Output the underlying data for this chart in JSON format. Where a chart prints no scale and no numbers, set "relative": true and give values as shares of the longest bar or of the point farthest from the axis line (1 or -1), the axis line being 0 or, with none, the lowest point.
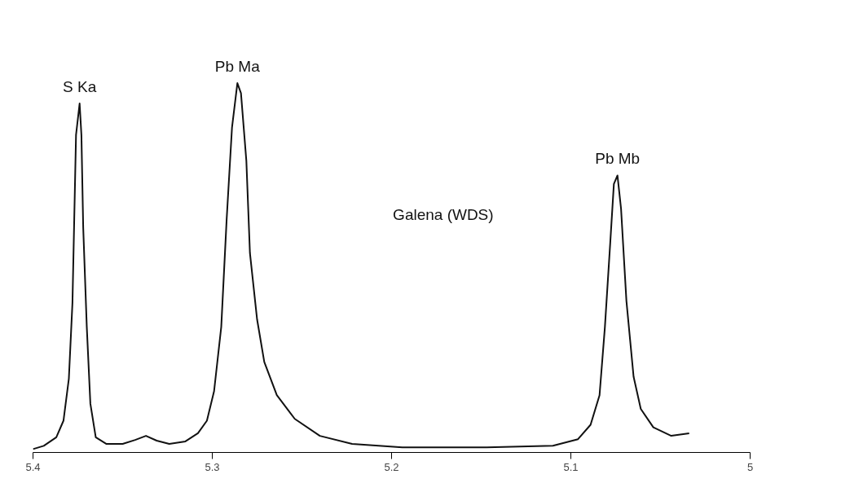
{
  "chart_data": {
    "type": "line",
    "relative": true,
    "x": [
      5.4,
      5.394,
      5.387,
      5.383,
      5.38,
      5.378,
      5.377,
      5.376,
      5.374,
      5.373,
      5.372,
      5.37,
      5.368,
      5.365,
      5.359,
      5.35,
      5.343,
      5.337,
      5.331,
      5.324,
      5.315,
      5.308,
      5.303,
      5.299,
      5.295,
      5.292,
      5.289,
      5.286,
      5.284,
      5.281,
      5.279,
      5.275,
      5.271,
      5.264,
      5.254,
      5.24,
      5.222,
      5.194,
      5.147,
      5.11,
      5.096,
      5.089,
      5.084,
      5.081,
      5.078,
      5.076,
      5.074,
      5.072,
      5.069,
      5.065,
      5.061,
      5.054,
      5.044,
      5.034
    ],
    "series": [
      {
        "color": "#111111",
        "values": [
          0.009,
          0.018,
          0.041,
          0.086,
          0.2,
          0.405,
          0.632,
          0.86,
          0.945,
          0.86,
          0.61,
          0.34,
          0.132,
          0.041,
          0.023,
          0.023,
          0.034,
          0.045,
          0.032,
          0.023,
          0.03,
          0.052,
          0.086,
          0.166,
          0.34,
          0.63,
          0.88,
          1.0,
          0.973,
          0.79,
          0.54,
          0.36,
          0.245,
          0.155,
          0.091,
          0.045,
          0.023,
          0.014,
          0.014,
          0.018,
          0.036,
          0.075,
          0.155,
          0.34,
          0.57,
          0.727,
          0.75,
          0.66,
          0.41,
          0.205,
          0.118,
          0.068,
          0.045,
          0.052
        ]
      }
    ],
    "xlim": [
      5.4,
      5.0
    ],
    "xticks": [
      5.4,
      5.3,
      5.2,
      5.1,
      5
    ],
    "annotations": [
      {
        "text": "S Ka",
        "x": 5.374,
        "y": 0.945
      },
      {
        "text": "Pb Ma",
        "x": 5.286,
        "y": 1.0
      },
      {
        "text": "Pb Mb",
        "x": 5.074,
        "y": 0.75
      },
      "Galena  (WDS)"
    ],
    "grid": false,
    "marker": "none",
    "line_style": "solid"
  }
}
